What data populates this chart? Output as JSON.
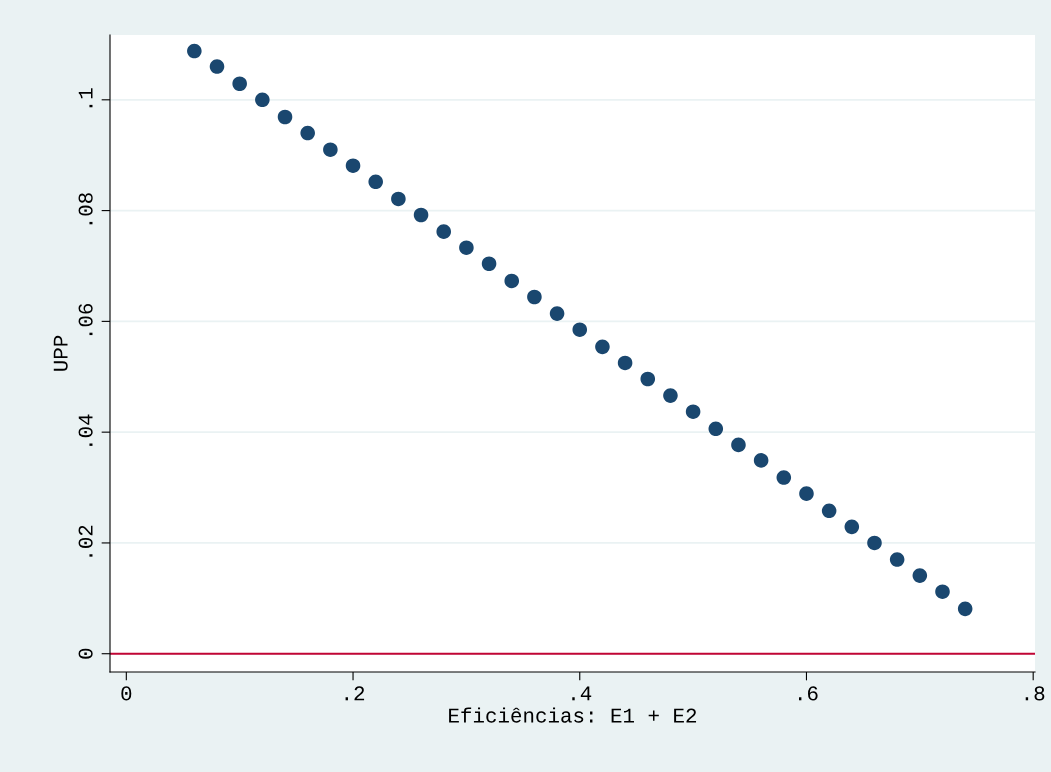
{
  "chart_data": {
    "type": "scatter",
    "xlabel": "Eficiências: E1 + E2",
    "ylabel": "UPP",
    "x": [
      0.06,
      0.08,
      0.1,
      0.12,
      0.14,
      0.16,
      0.18,
      0.2,
      0.22,
      0.24,
      0.26,
      0.28,
      0.3,
      0.32,
      0.34,
      0.36,
      0.38,
      0.4,
      0.42,
      0.44,
      0.46,
      0.48,
      0.5,
      0.52,
      0.54,
      0.56,
      0.58,
      0.6,
      0.62,
      0.64,
      0.66,
      0.68,
      0.7,
      0.72,
      0.74
    ],
    "series": [
      {
        "color": "#1a476f",
        "values": [
          0.1088,
          0.106,
          0.1029,
          0.1,
          0.0969,
          0.094,
          0.091,
          0.0881,
          0.0852,
          0.0821,
          0.0792,
          0.0762,
          0.0733,
          0.0704,
          0.0673,
          0.0644,
          0.0614,
          0.0585,
          0.0554,
          0.0525,
          0.0496,
          0.0466,
          0.0437,
          0.0406,
          0.0377,
          0.0349,
          0.0318,
          0.0289,
          0.0258,
          0.0229,
          0.02,
          0.017,
          0.0141,
          0.0112,
          0.0081
        ]
      }
    ],
    "xlim": [
      -0.0144,
      0.8016
    ],
    "ylim": [
      -0.0033,
      0.1117
    ],
    "xticks": [
      {
        "value": 0,
        "label": "0"
      },
      {
        "value": 0.2,
        "label": ".2"
      },
      {
        "value": 0.4,
        "label": ".4"
      },
      {
        "value": 0.6,
        "label": ".6"
      },
      {
        "value": 0.8,
        "label": ".8"
      }
    ],
    "yticks": [
      {
        "value": 0,
        "label": "0"
      },
      {
        "value": 0.02,
        "label": ".02"
      },
      {
        "value": 0.04,
        "label": ".04"
      },
      {
        "value": 0.06,
        "label": ".06"
      },
      {
        "value": 0.08,
        "label": ".08"
      },
      {
        "value": 0.1,
        "label": ".1"
      }
    ],
    "grid": "y",
    "marker": "circle",
    "ref_lines": [
      {
        "axis": "y",
        "value": 0,
        "color": "#c10534",
        "line_style": "solid"
      }
    ]
  }
}
